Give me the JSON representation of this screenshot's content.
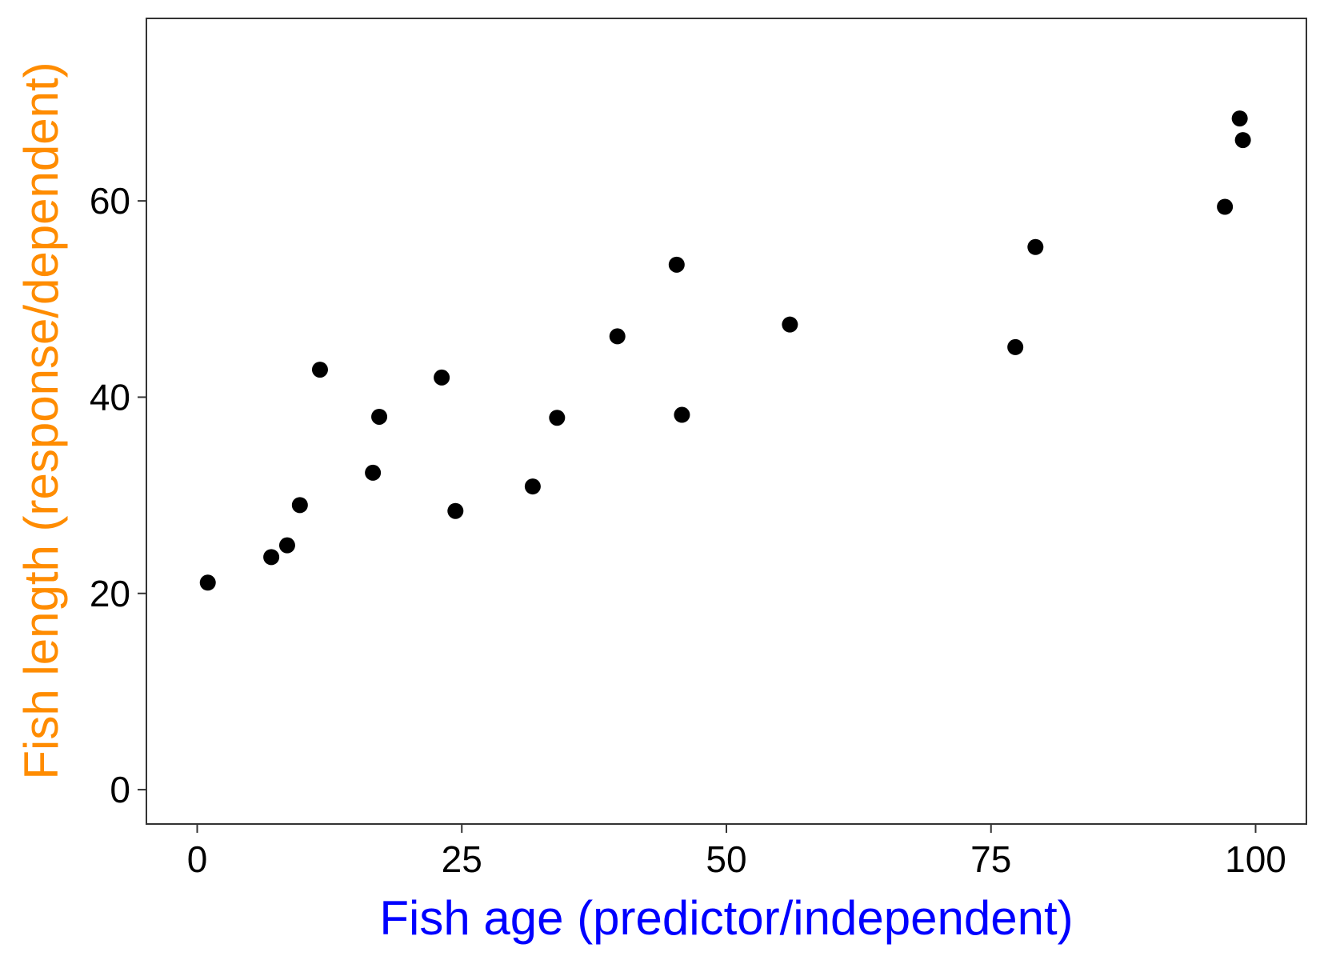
{
  "chart_data": {
    "type": "scatter",
    "title": "",
    "xlabel": "Fish age (predictor/independent)",
    "ylabel": "Fish length (response/dependent)",
    "xlabel_color": "#0000ff",
    "ylabel_color": "#ff8c00",
    "point_color": "#000000",
    "grid": false,
    "legend": "none",
    "xlim": [
      -4.8,
      104.8
    ],
    "ylim": [
      -3.5,
      78.6
    ],
    "xticks": [
      0,
      25,
      50,
      75,
      100
    ],
    "xtick_labels": [
      "0",
      "25",
      "50",
      "75",
      "100"
    ],
    "yticks": [
      0,
      20,
      40,
      60
    ],
    "ytick_labels": [
      "0",
      "20",
      "40",
      "60"
    ],
    "points": [
      {
        "x": 1.0,
        "y": 21.1
      },
      {
        "x": 7.0,
        "y": 23.7
      },
      {
        "x": 8.5,
        "y": 24.9
      },
      {
        "x": 9.7,
        "y": 29.0
      },
      {
        "x": 11.6,
        "y": 42.8
      },
      {
        "x": 16.6,
        "y": 32.3
      },
      {
        "x": 17.2,
        "y": 38.0
      },
      {
        "x": 23.1,
        "y": 42.0
      },
      {
        "x": 24.4,
        "y": 28.4
      },
      {
        "x": 31.7,
        "y": 30.9
      },
      {
        "x": 34.0,
        "y": 37.9
      },
      {
        "x": 39.7,
        "y": 46.2
      },
      {
        "x": 45.3,
        "y": 53.5
      },
      {
        "x": 45.8,
        "y": 38.2
      },
      {
        "x": 56.0,
        "y": 47.4
      },
      {
        "x": 77.3,
        "y": 45.1
      },
      {
        "x": 79.2,
        "y": 55.3
      },
      {
        "x": 97.1,
        "y": 59.4
      },
      {
        "x": 98.5,
        "y": 68.4
      },
      {
        "x": 98.8,
        "y": 66.2
      }
    ]
  }
}
